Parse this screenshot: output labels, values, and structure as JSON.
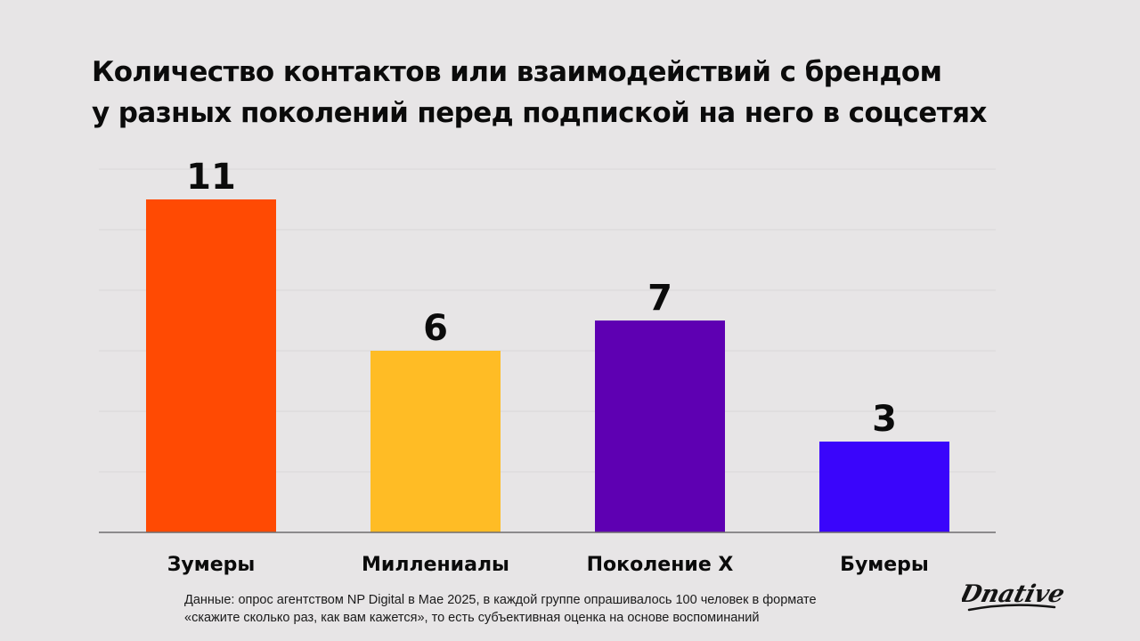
{
  "title": {
    "line1": "Количество контактов или взаимодействий с брендом",
    "line2": "у разных поколений перед подпиской на него в соцсетях"
  },
  "chart_data": {
    "type": "bar",
    "title": "Количество контактов или взаимодействий с брендом у разных поколений перед подпиской на него в соцсетях",
    "categories": [
      "Зумеры",
      "Миллениалы",
      "Поколение Х",
      "Бумеры"
    ],
    "values": [
      11,
      6,
      7,
      3
    ],
    "colors": [
      "#ff4a03",
      "#ffbc25",
      "#5e00b2",
      "#3a05fb"
    ],
    "ylim": [
      0,
      12
    ],
    "grid": true,
    "legend": "none",
    "xlabel": "",
    "ylabel": ""
  },
  "footnote": {
    "line1": "Данные: опрос агентством NP Digital в Мае 2025, в каждой группе опрашивалось 100 человек в формате",
    "line2": "«скажите сколько раз, как вам кажется», то есть субъективная оценка на основе воспоминаний"
  },
  "logo": {
    "text": "Dnative"
  }
}
